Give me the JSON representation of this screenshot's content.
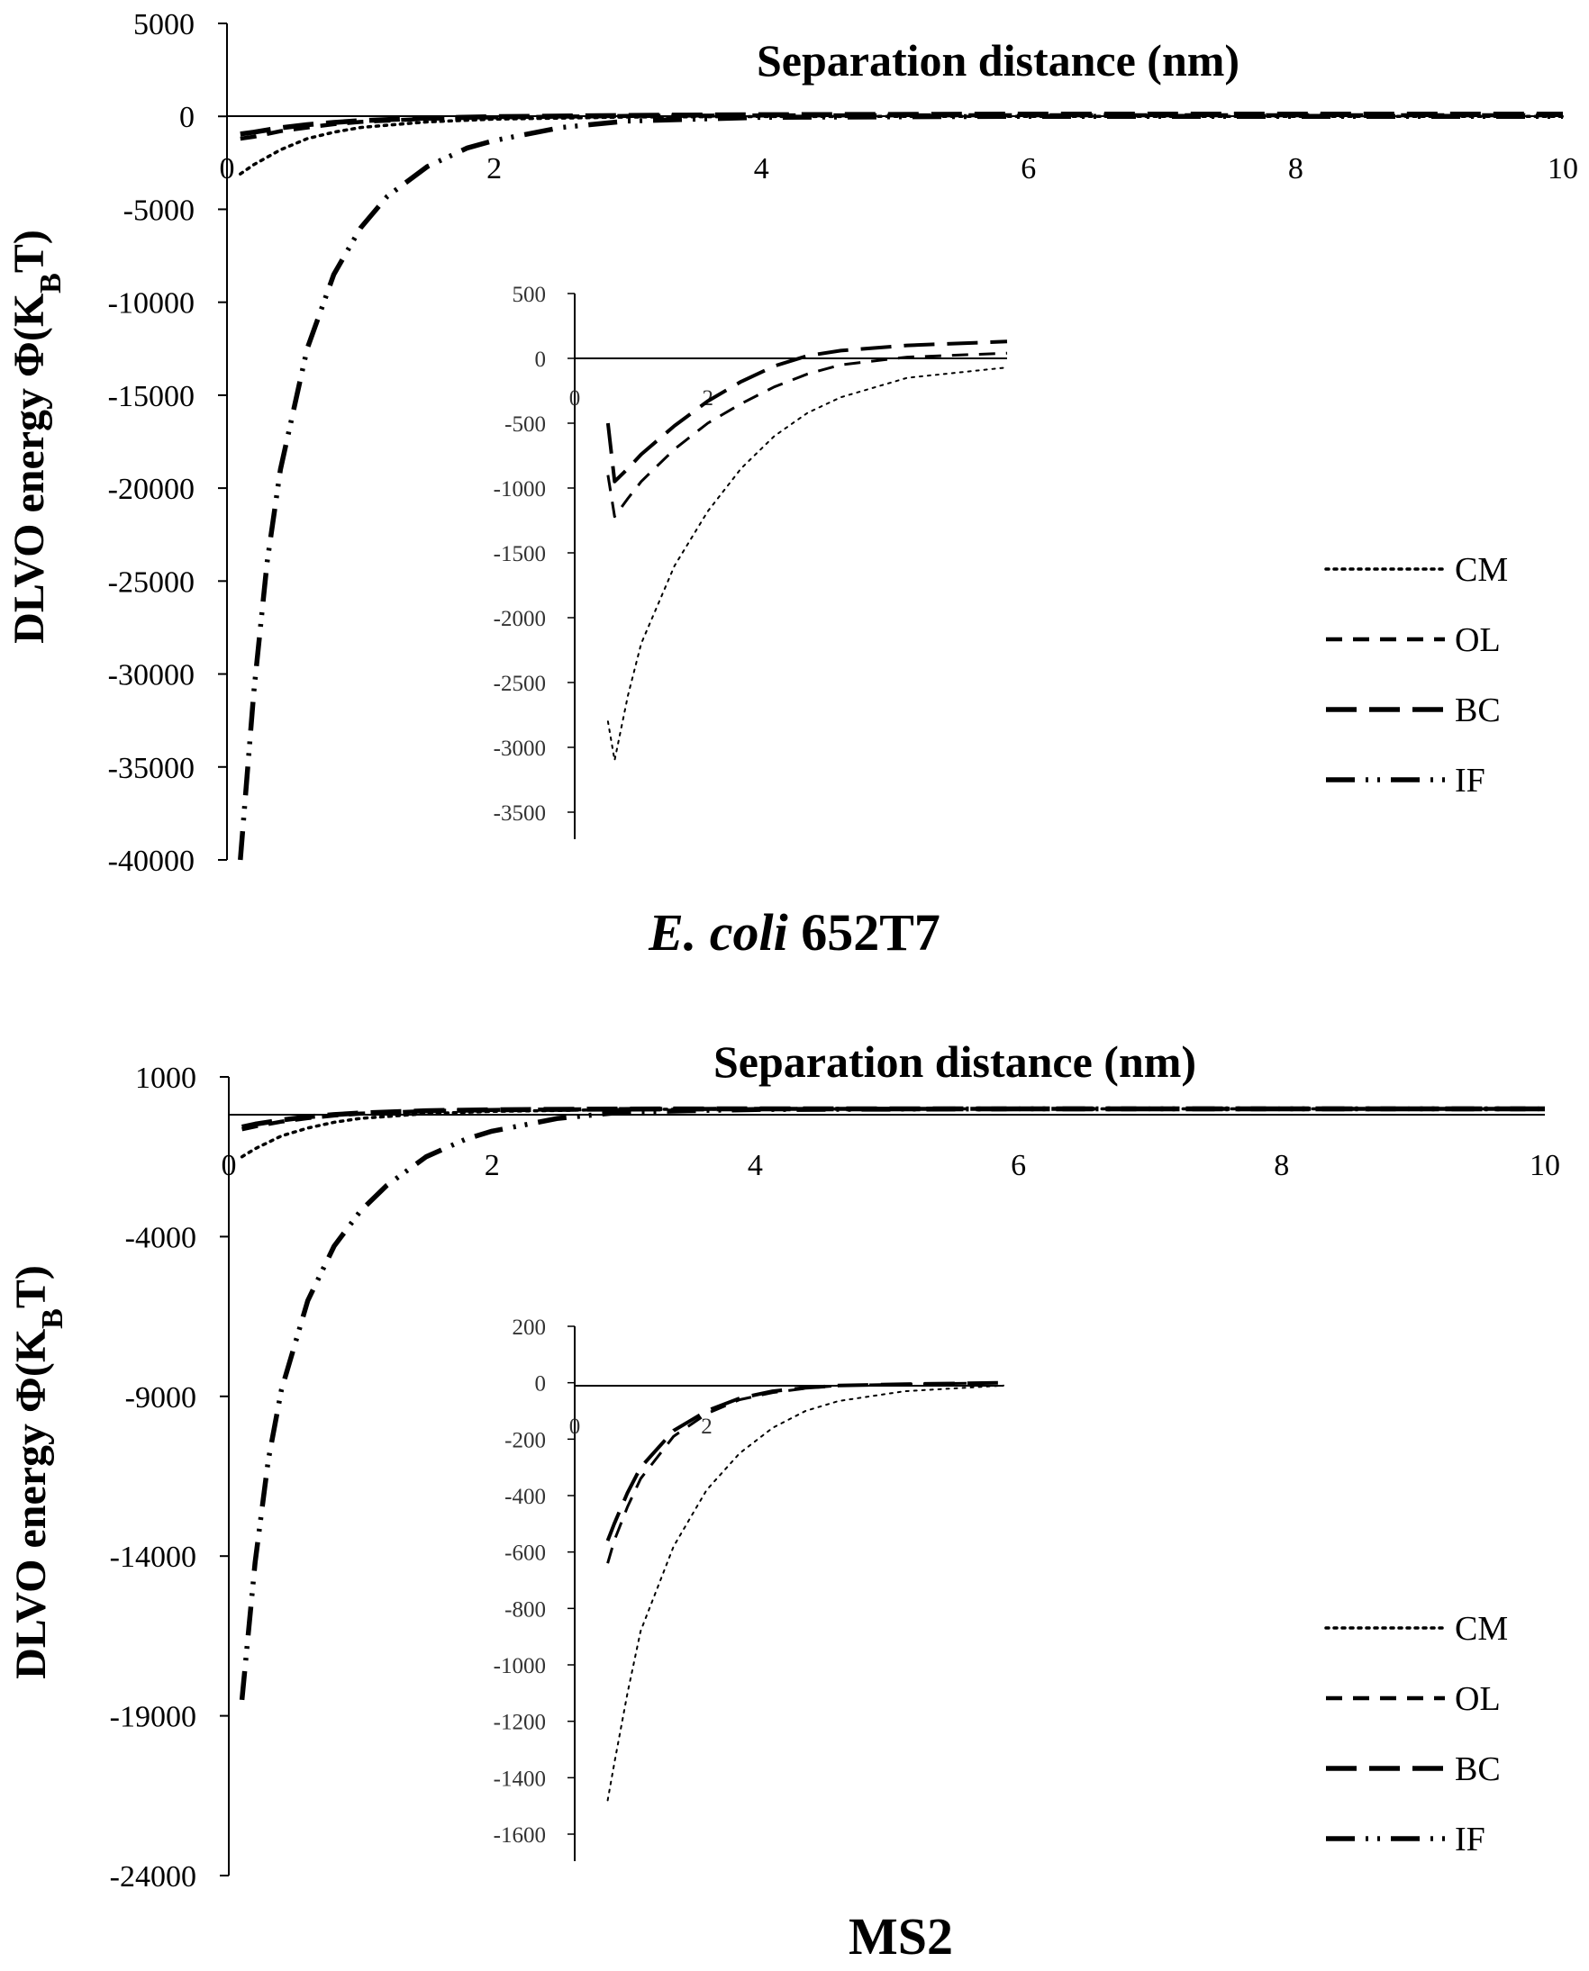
{
  "chart_data": [
    {
      "type": "line",
      "caption_italic": "E. coli",
      "caption_rest": " 652T7",
      "xlabel": "Separation distance (nm)",
      "ylabel": "DLVO energy Φ(K",
      "ylabel_sub": "B",
      "ylabel_end": "T)",
      "xlim": [
        0,
        10
      ],
      "ylim": [
        -40000,
        5000
      ],
      "xticks": [
        "0",
        "2",
        "4",
        "6",
        "8",
        "10"
      ],
      "yticks": [
        "5000",
        "0",
        "-5000",
        "-10000",
        "-15000",
        "-20000",
        "-25000",
        "-30000",
        "-35000",
        "-40000"
      ],
      "series": [
        {
          "name": "CM",
          "style": "dotted",
          "x": [
            0.1,
            0.2,
            0.4,
            0.6,
            0.8,
            1.0,
            1.5,
            2.0,
            3.0,
            4.0,
            6.0,
            10.0
          ],
          "values": [
            -3100,
            -2600,
            -1800,
            -1200,
            -850,
            -600,
            -300,
            -150,
            -40,
            -10,
            0,
            0
          ]
        },
        {
          "name": "OL",
          "style": "dashed",
          "x": [
            0.1,
            0.2,
            0.4,
            0.6,
            0.8,
            1.0,
            1.5,
            2.0,
            3.0,
            4.0,
            6.0,
            10.0
          ],
          "values": [
            -1200,
            -1100,
            -800,
            -600,
            -420,
            -300,
            -130,
            -50,
            20,
            50,
            60,
            60
          ]
        },
        {
          "name": "BC",
          "style": "longdash",
          "x": [
            0.1,
            0.2,
            0.4,
            0.6,
            0.8,
            1.0,
            1.5,
            2.0,
            3.0,
            4.0,
            6.0,
            10.0
          ],
          "values": [
            -950,
            -850,
            -620,
            -450,
            -330,
            -230,
            -90,
            -20,
            50,
            90,
            120,
            120
          ]
        },
        {
          "name": "IF",
          "style": "dashdotdot",
          "x": [
            0.1,
            0.2,
            0.3,
            0.4,
            0.6,
            0.8,
            1.0,
            1.2,
            1.5,
            1.8,
            2.0,
            2.5,
            3.0,
            4.0,
            6.0,
            10.0
          ],
          "values": [
            -40000,
            -31000,
            -24000,
            -19000,
            -12500,
            -8500,
            -6000,
            -4300,
            -2700,
            -1700,
            -1300,
            -600,
            -250,
            -50,
            0,
            0
          ]
        }
      ],
      "inset": {
        "xlim": [
          0,
          6.5
        ],
        "ylim": [
          -3500,
          500
        ],
        "xticks": [
          "0",
          "2"
        ],
        "yticks": [
          "500",
          "0",
          "-500",
          "-1000",
          "-1500",
          "-2000",
          "-2500",
          "-3000",
          "-3500"
        ],
        "series": [
          {
            "name": "CM",
            "style": "dotted",
            "x": [
              0.5,
              0.6,
              0.8,
              1.0,
              1.5,
              2.0,
              2.5,
              3.0,
              3.5,
              4.0,
              5.0,
              6.5
            ],
            "values": [
              -2800,
              -3100,
              -2600,
              -2200,
              -1600,
              -1180,
              -850,
              -600,
              -420,
              -300,
              -150,
              -70
            ]
          },
          {
            "name": "OL",
            "style": "dashed",
            "x": [
              0.5,
              0.6,
              0.8,
              1.0,
              1.5,
              2.0,
              2.5,
              3.0,
              3.5,
              4.0,
              5.0,
              6.5
            ],
            "values": [
              -900,
              -1220,
              -1080,
              -950,
              -700,
              -500,
              -350,
              -220,
              -120,
              -50,
              10,
              40
            ]
          },
          {
            "name": "BC",
            "style": "longdash",
            "x": [
              0.5,
              0.6,
              0.8,
              1.0,
              1.5,
              2.0,
              2.5,
              3.0,
              3.5,
              4.0,
              5.0,
              6.5
            ],
            "values": [
              -500,
              -950,
              -850,
              -740,
              -520,
              -330,
              -180,
              -60,
              20,
              60,
              100,
              130
            ]
          }
        ]
      },
      "legend": [
        "CM",
        "OL",
        "BC",
        "IF"
      ]
    },
    {
      "type": "line",
      "caption_italic": "",
      "caption_rest": "MS2",
      "xlabel": "Separation distance (nm)",
      "ylabel": "DLVO energy Φ(K",
      "ylabel_sub": "B",
      "ylabel_end": "T)",
      "xlim": [
        0,
        10
      ],
      "ylim": [
        -24000,
        1000
      ],
      "xticks": [
        "0",
        "2",
        "4",
        "6",
        "8",
        "10"
      ],
      "yticks": [
        "1000",
        "-4000",
        "-9000",
        "-14000",
        "-19000",
        "-24000"
      ],
      "series": [
        {
          "name": "CM",
          "style": "dotted",
          "x": [
            0.1,
            0.2,
            0.4,
            0.6,
            0.8,
            1.0,
            1.5,
            2.0,
            3.0,
            4.0,
            6.0,
            10.0
          ],
          "values": [
            -1500,
            -1250,
            -850,
            -600,
            -420,
            -300,
            -150,
            -80,
            -20,
            -5,
            0,
            0
          ]
        },
        {
          "name": "OL",
          "style": "dashed",
          "x": [
            0.1,
            0.2,
            0.4,
            0.6,
            0.8,
            1.0,
            1.5,
            2.0,
            3.0,
            4.0,
            6.0,
            10.0
          ],
          "values": [
            -640,
            -550,
            -400,
            -290,
            -210,
            -150,
            -70,
            -35,
            -5,
            0,
            0,
            0
          ]
        },
        {
          "name": "BC",
          "style": "longdash",
          "x": [
            0.1,
            0.2,
            0.4,
            0.6,
            0.8,
            1.0,
            1.5,
            2.0,
            3.0,
            4.0,
            6.0,
            10.0
          ],
          "values": [
            -570,
            -480,
            -350,
            -250,
            -180,
            -130,
            -60,
            -30,
            -5,
            0,
            0,
            0
          ]
        },
        {
          "name": "IF",
          "style": "dashdotdot",
          "x": [
            0.1,
            0.2,
            0.3,
            0.4,
            0.6,
            0.8,
            1.0,
            1.2,
            1.5,
            1.8,
            2.0,
            2.5,
            3.0,
            4.0,
            6.0,
            10.0
          ],
          "values": [
            -18500,
            -14200,
            -11000,
            -8800,
            -6000,
            -4300,
            -3200,
            -2400,
            -1500,
            -950,
            -700,
            -300,
            -100,
            -20,
            0,
            0
          ]
        }
      ],
      "inset": {
        "xlim": [
          0,
          6.5
        ],
        "ylim": [
          -1600,
          200
        ],
        "xticks": [
          "0",
          "2"
        ],
        "yticks": [
          "200",
          "0",
          "-200",
          "-400",
          "-600",
          "-800",
          "-1000",
          "-1200",
          "-1400",
          "-1600"
        ],
        "series": [
          {
            "name": "CM",
            "style": "dotted",
            "x": [
              0.5,
              0.6,
              0.8,
              1.0,
              1.5,
              2.0,
              2.5,
              3.0,
              3.5,
              4.0,
              5.0,
              6.5
            ],
            "values": [
              -1480,
              -1350,
              -1100,
              -880,
              -580,
              -380,
              -250,
              -160,
              -100,
              -65,
              -30,
              -10
            ]
          },
          {
            "name": "OL",
            "style": "dashed",
            "x": [
              0.5,
              0.6,
              0.8,
              1.0,
              1.5,
              2.0,
              2.5,
              3.0,
              3.5,
              4.0,
              5.0,
              6.5
            ],
            "values": [
              -640,
              -560,
              -440,
              -340,
              -190,
              -110,
              -60,
              -35,
              -20,
              -10,
              -5,
              0
            ]
          },
          {
            "name": "BC",
            "style": "longdash",
            "x": [
              0.5,
              0.6,
              0.8,
              1.0,
              1.5,
              2.0,
              2.5,
              3.0,
              3.5,
              4.0,
              5.0,
              6.5
            ],
            "values": [
              -560,
              -500,
              -390,
              -300,
              -170,
              -100,
              -55,
              -30,
              -18,
              -10,
              -5,
              0
            ]
          }
        ]
      },
      "legend": [
        "CM",
        "OL",
        "BC",
        "IF"
      ]
    }
  ]
}
